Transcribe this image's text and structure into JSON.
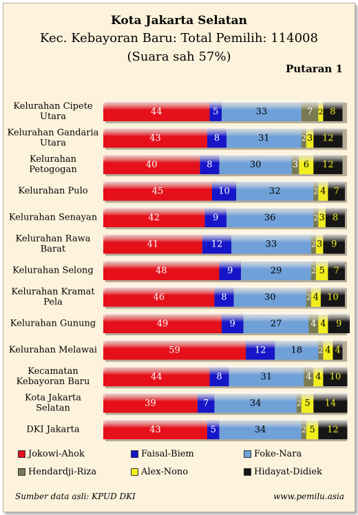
{
  "header": {
    "title": "Kota Jakarta Selatan",
    "subtitle": "Kec. Kebayoran Baru: Total Pemilih: 114008",
    "subtitle2": "(Suara sah 57%)",
    "round": "Putaran 1"
  },
  "footer": {
    "source": "Sumber data asli: KPUD DKI",
    "site": "www.pemilu.asia"
  },
  "chart_data": {
    "type": "bar",
    "orientation": "horizontal",
    "stacked": true,
    "categories": [
      "Kelurahan Cipete Utara",
      "Kelurahan Gandaria Utara",
      "Kelurahan Petogogan",
      "Kelurahan Pulo",
      "Kelurahan Senayan",
      "Kelurahan Rawa Barat",
      "Kelurahan Selong",
      "Kelurahan Kramat Pela",
      "Kelurahan Gunung",
      "Kelurahan Melawai",
      "Kecamatan Kebayoran Baru",
      "Kota Jakarta Selatan",
      "DKI Jakarta"
    ],
    "series": [
      {
        "name": "Jokowi-Ahok",
        "color": "#e5101a",
        "text_color": "#ffffff",
        "values": [
          44,
          43,
          40,
          45,
          42,
          41,
          48,
          46,
          49,
          59,
          44,
          39,
          43
        ]
      },
      {
        "name": "Faisal-Biem",
        "color": "#1616c8",
        "text_color": "#ffffff",
        "values": [
          5,
          8,
          8,
          10,
          9,
          12,
          9,
          8,
          9,
          12,
          8,
          7,
          5
        ]
      },
      {
        "name": "Foke-Nara",
        "color": "#6fa0d8",
        "text_color": "#000000",
        "values": [
          33,
          31,
          30,
          32,
          36,
          33,
          29,
          30,
          27,
          18,
          31,
          34,
          34
        ]
      },
      {
        "name": "Hendardji-Riza",
        "color": "#7a7a52",
        "text_color": "#ffffff",
        "values": [
          7,
          2,
          3,
          2,
          2,
          2,
          2,
          2,
          4,
          2,
          4,
          2,
          2
        ]
      },
      {
        "name": "Alex-Nono",
        "color": "#f2ee1e",
        "text_color": "#000000",
        "values": [
          2,
          3,
          6,
          4,
          3,
          3,
          5,
          4,
          4,
          4,
          4,
          5,
          5
        ]
      },
      {
        "name": "Hidayat-Didiek",
        "color": "#161616",
        "text_color": "#f2ee1e",
        "values": [
          8,
          12,
          12,
          7,
          8,
          9,
          7,
          10,
          9,
          4,
          10,
          14,
          12
        ]
      }
    ],
    "xlim": [
      0,
      100
    ]
  }
}
